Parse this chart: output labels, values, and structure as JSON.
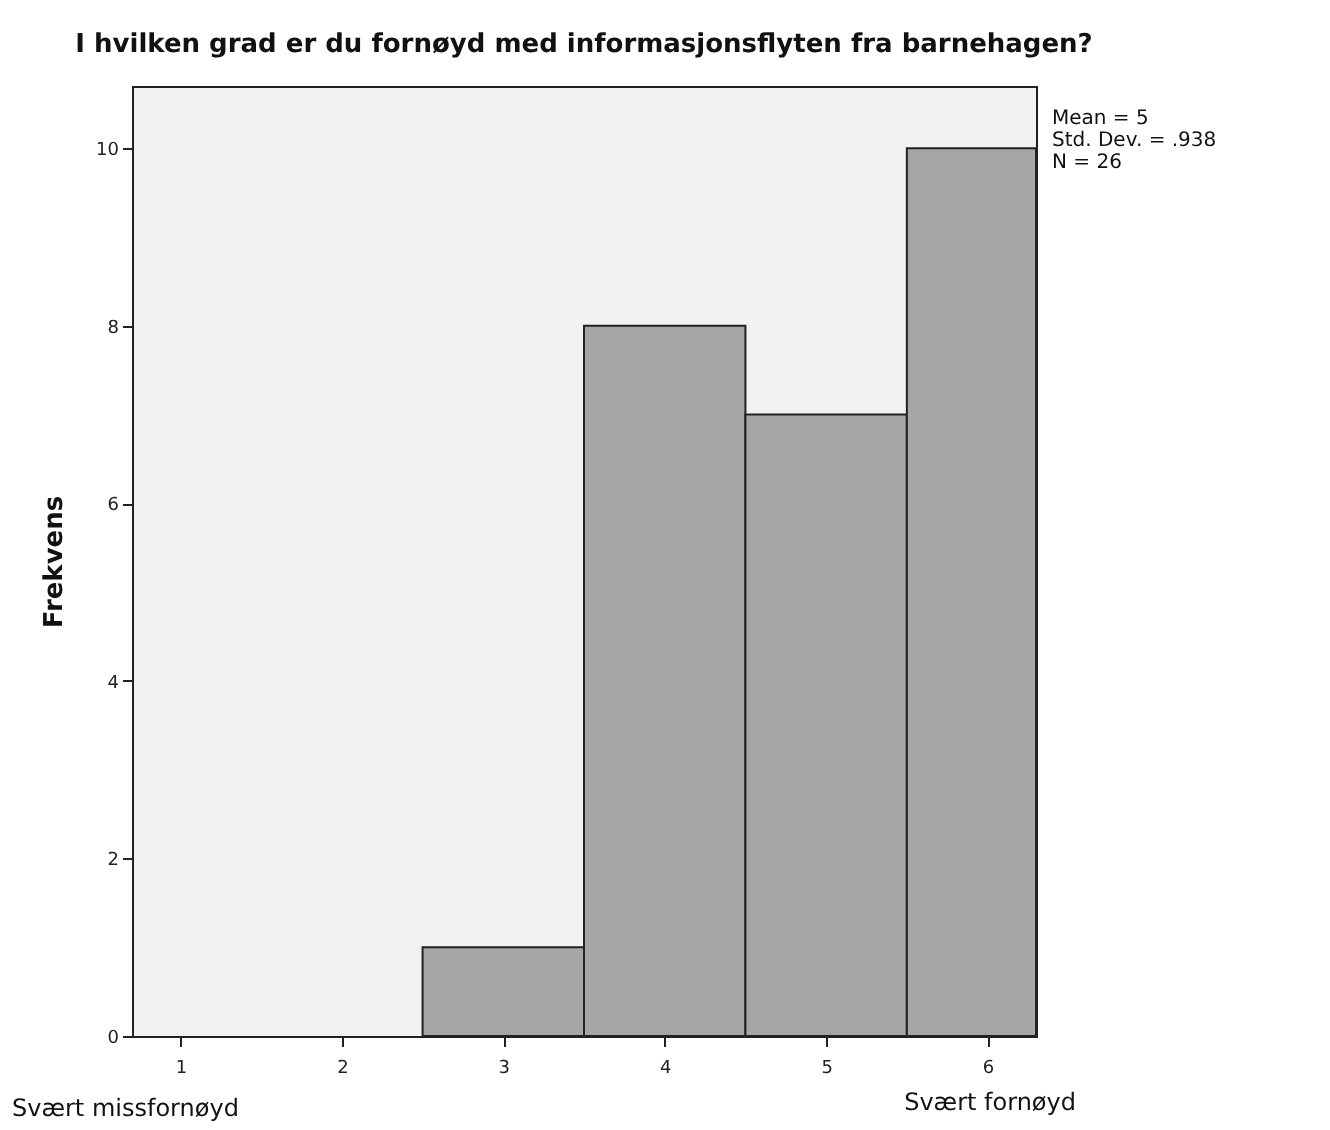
{
  "chart_data": {
    "type": "histogram",
    "title": "I hvilken grad er du fornøyd med informasjonsflyten fra barnehagen?",
    "ylabel": "Frekvens",
    "bins": [
      2.5,
      3.5,
      4.5,
      5.5,
      6.3
    ],
    "values": [
      1,
      8,
      7,
      10
    ],
    "color": "#a6a6a6",
    "xlim": [
      0.7,
      6.3
    ],
    "xticks": [
      1,
      2,
      3,
      4,
      5,
      6
    ],
    "ylim": [
      0,
      10.7
    ],
    "yticks": [
      0,
      2,
      4,
      6,
      8,
      10
    ],
    "grid": false,
    "annotations": [
      "Mean = 5",
      "Std. Dev. = .938",
      "N = 26",
      "Svært missfornøyd",
      "Svært fornøyd"
    ]
  }
}
